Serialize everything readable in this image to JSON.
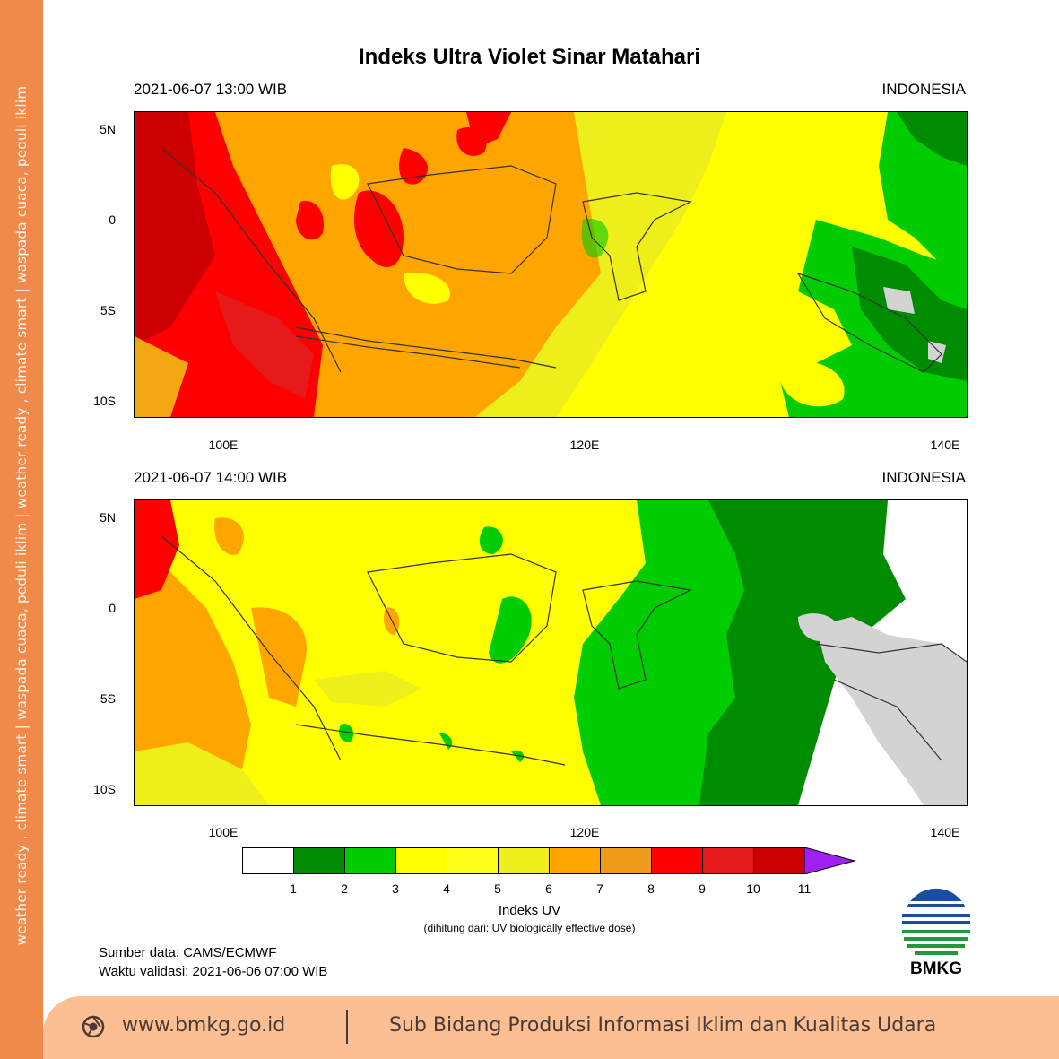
{
  "sidebar_text": "weather ready , climate smart   |   waspada cuaca, peduli iklim   |   weather ready , climate smart   |   waspada cuaca, peduli iklim",
  "title": "Indeks Ultra Violet Sinar Matahari",
  "panels": [
    {
      "date": "2021-06-07  13:00 WIB",
      "region": "INDONESIA"
    },
    {
      "date": "2021-06-07  14:00 WIB",
      "region": "INDONESIA"
    }
  ],
  "lat_labels": [
    "5N",
    "0",
    "5S",
    "10S"
  ],
  "lon_labels": [
    "100E",
    "120E",
    "140E"
  ],
  "colorbar": {
    "labels": [
      "1",
      "2",
      "3",
      "4",
      "5",
      "6",
      "7",
      "8",
      "9",
      "10",
      "11"
    ],
    "colors": [
      "#ffffff",
      "#008c00",
      "#00cc00",
      "#ffff00",
      "#ffff1a",
      "#eeee1a",
      "#ffa500",
      "#ee9a1a",
      "#ff0000",
      "#e61a1a",
      "#cc0000",
      "#a020f0"
    ],
    "title": "Indeks UV",
    "subtitle": "(dihitung dari: UV biologically effective dose)"
  },
  "source": "Sumber data: CAMS/ECMWF",
  "validity": "Waktu validasi: 2021-06-06 07:00 WIB",
  "logo_text": "BMKG",
  "footer": {
    "website": "www.bmkg.go.id",
    "unit": "Sub Bidang Produksi Informasi Iklim dan Kualitas Udara"
  }
}
